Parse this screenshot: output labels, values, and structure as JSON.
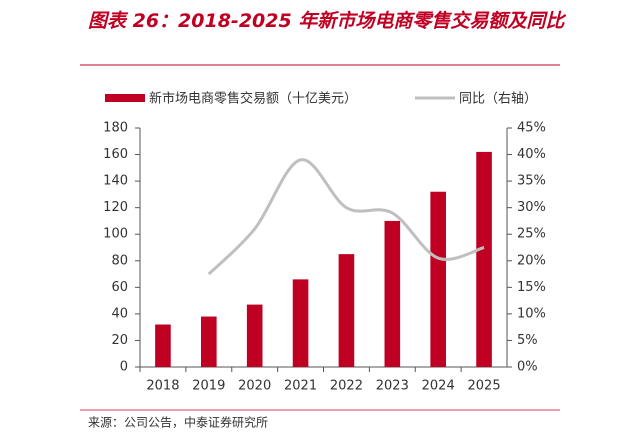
{
  "chart_data": {
    "type": "bar-line",
    "title": "图表 26：2018-2025 年新市场电商零售交易额及同比",
    "source": "来源：公司公告，中泰证券研究所",
    "categories": [
      "2018",
      "2019",
      "2020",
      "2021",
      "2022",
      "2023",
      "2024",
      "2025"
    ],
    "series": [
      {
        "name": "新市场电商零售交易额（十亿美元）",
        "type": "bar",
        "color": "#c00022",
        "values": [
          32,
          38,
          47,
          66,
          85,
          110,
          132,
          162
        ]
      },
      {
        "name": "同比（右轴）",
        "type": "line",
        "axis": "y2",
        "color": "#bfbfbf",
        "values": [
          null,
          17.5,
          26,
          39,
          30,
          29,
          20.5,
          22.5
        ]
      }
    ],
    "ylim": [
      0,
      180
    ],
    "yticks": [
      0,
      20,
      40,
      60,
      80,
      100,
      120,
      140,
      160,
      180
    ],
    "y2lim": [
      0,
      45
    ],
    "y2ticks": [
      {
        "value": 0,
        "label": "0%"
      },
      {
        "value": 5,
        "label": "5%"
      },
      {
        "value": 10,
        "label": "10%"
      },
      {
        "value": 15,
        "label": "15%"
      },
      {
        "value": 20,
        "label": "20%"
      },
      {
        "value": 25,
        "label": "25%"
      },
      {
        "value": 30,
        "label": "30%"
      },
      {
        "value": 35,
        "label": "35%"
      },
      {
        "value": 40,
        "label": "40%"
      },
      {
        "value": 45,
        "label": "45%"
      }
    ],
    "grid": false
  }
}
